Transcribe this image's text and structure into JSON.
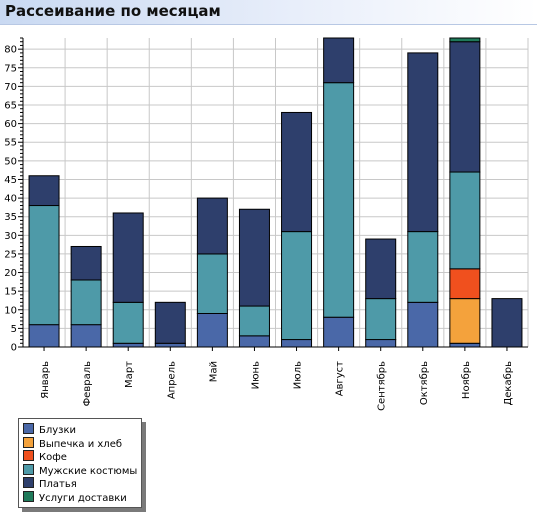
{
  "header": {
    "title": "Рассеивание по месяцам"
  },
  "chart_data": {
    "type": "bar",
    "stacked": true,
    "title": "Рассеивание по месяцам",
    "xlabel": "",
    "ylabel": "",
    "categories": [
      "Январь",
      "Февраль",
      "Март",
      "Апрель",
      "Май",
      "Июнь",
      "Июль",
      "Август",
      "Сентябрь",
      "Октябрь",
      "Ноябрь",
      "Декабрь"
    ],
    "series": [
      {
        "name": "Блузки",
        "color": "#4a68a8",
        "values": [
          6,
          6,
          1,
          1,
          9,
          3,
          2,
          8,
          2,
          12,
          1,
          0
        ]
      },
      {
        "name": "Выпечка и хлеб",
        "color": "#f4a23c",
        "values": [
          0,
          0,
          0,
          0,
          0,
          0,
          0,
          0,
          0,
          0,
          12,
          0
        ]
      },
      {
        "name": "Кофе",
        "color": "#f0501e",
        "values": [
          0,
          0,
          0,
          0,
          0,
          0,
          0,
          0,
          0,
          0,
          8,
          0
        ]
      },
      {
        "name": "Мужские костюмы",
        "color": "#4e9aa8",
        "values": [
          32,
          12,
          11,
          0,
          16,
          8,
          29,
          63,
          11,
          19,
          26,
          0
        ]
      },
      {
        "name": "Платья",
        "color": "#2e3f6c",
        "values": [
          8,
          9,
          24,
          11,
          15,
          26,
          32,
          12,
          16,
          48,
          35,
          13
        ]
      },
      {
        "name": "Услуги доставки",
        "color": "#1f7a5a",
        "values": [
          0,
          0,
          0,
          0,
          0,
          0,
          0,
          0,
          0,
          0,
          1,
          0
        ]
      }
    ],
    "ylim": [
      0,
      83
    ],
    "yticks": [
      0,
      5,
      10,
      15,
      20,
      25,
      30,
      35,
      40,
      45,
      50,
      55,
      60,
      65,
      70,
      75,
      80
    ],
    "grid": true,
    "legend_position": "bottom-left"
  }
}
